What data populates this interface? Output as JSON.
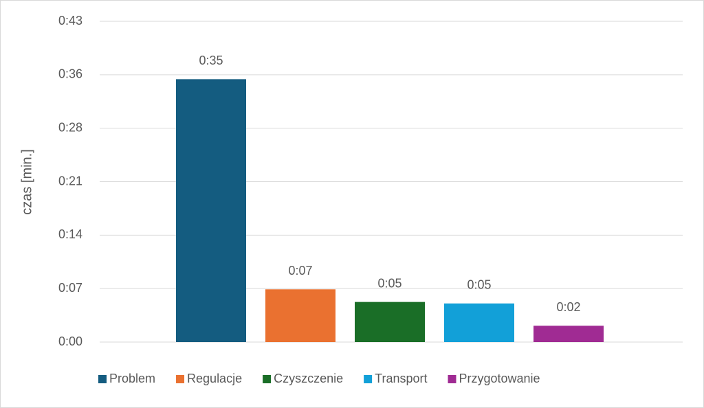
{
  "chart_data": {
    "type": "bar",
    "y_label": "czas [min.]",
    "categories": [
      "Problem",
      "Regulacje",
      "Czyszczenie",
      "Transport",
      "Przygotowanie"
    ],
    "values": [
      35.4,
      7.1,
      5.4,
      5.2,
      2.2
    ],
    "value_labels": [
      "0:35",
      "0:07",
      "0:05",
      "0:05",
      "0:02"
    ],
    "colors": [
      "#145c80",
      "#ea7130",
      "#1a6e27",
      "#12a0d8",
      "#a02b93"
    ],
    "ylim": [
      0,
      43.2
    ],
    "yticks": [
      {
        "value": 0,
        "label": "0:00"
      },
      {
        "value": 7.2,
        "label": "0:07"
      },
      {
        "value": 14.4,
        "label": "0:14"
      },
      {
        "value": 21.6,
        "label": "0:21"
      },
      {
        "value": 28.8,
        "label": "0:28"
      },
      {
        "value": 36,
        "label": "0:36"
      },
      {
        "value": 43.2,
        "label": "0:43"
      }
    ],
    "grid": true,
    "legend": "bottom"
  }
}
